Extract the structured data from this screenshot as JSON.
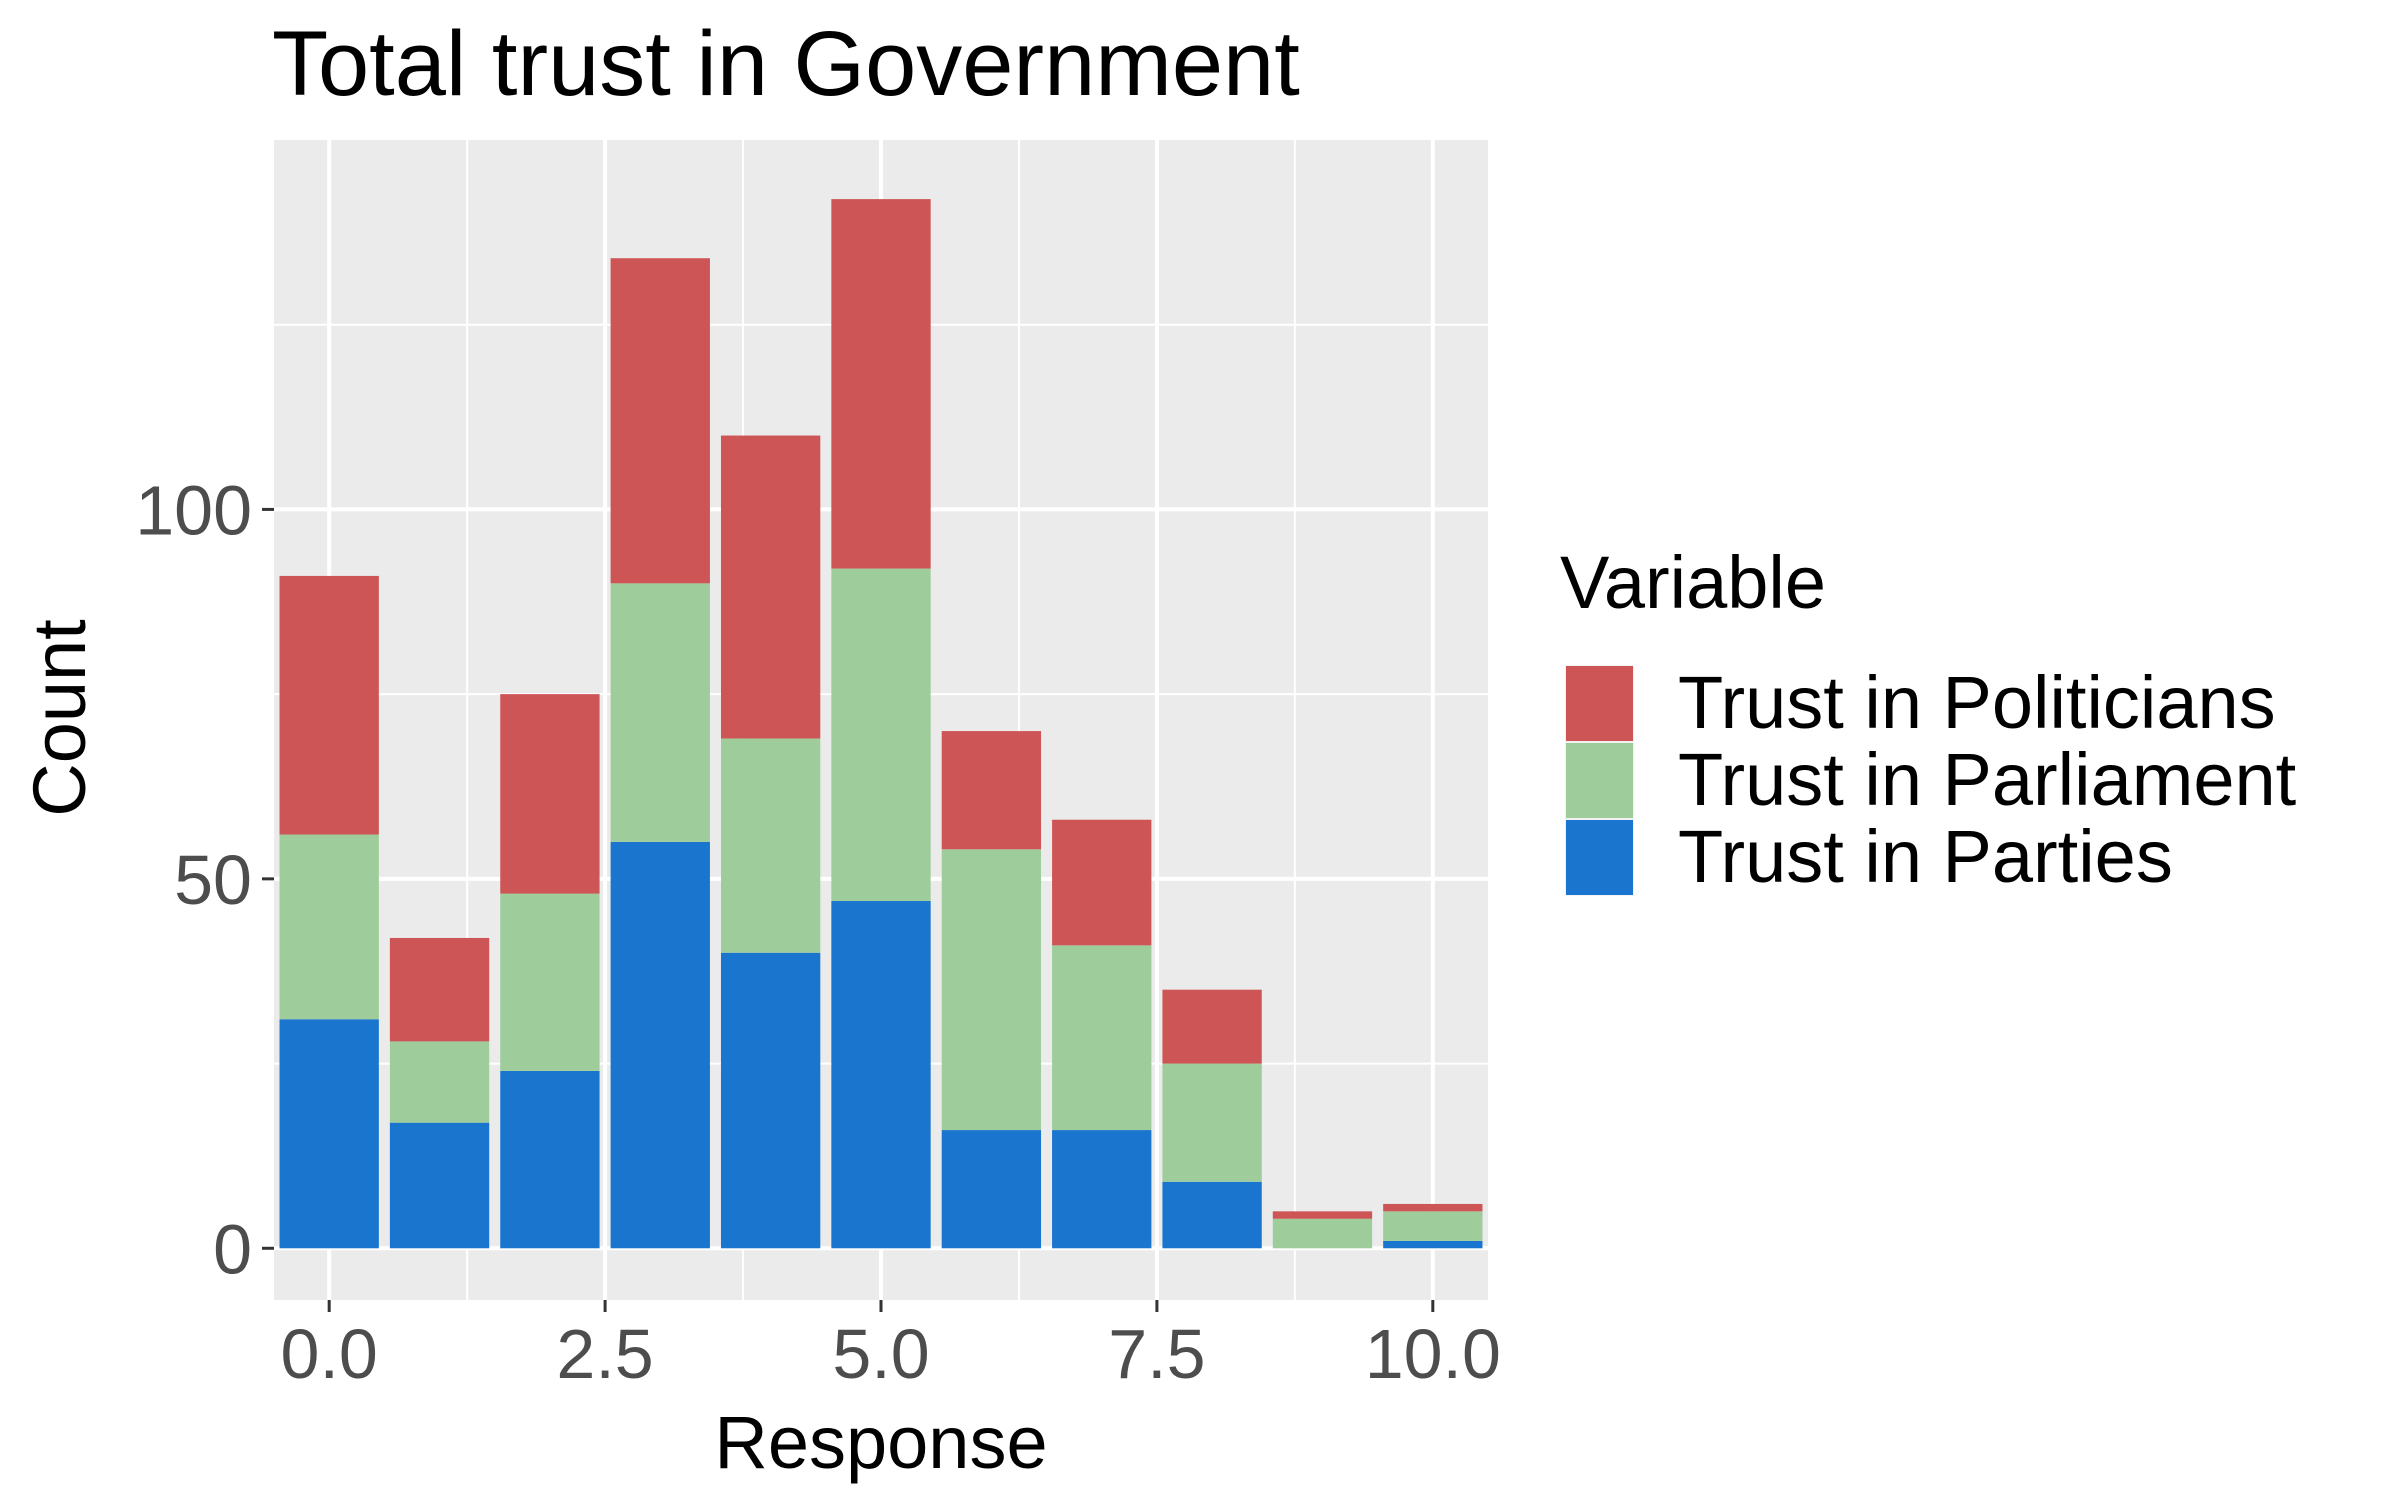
{
  "chart_data": {
    "type": "bar",
    "stacked": true,
    "title": "Total trust in Government",
    "xlabel": "Response",
    "ylabel": "Count",
    "x": [
      0,
      1,
      2,
      3,
      4,
      5,
      6,
      7,
      8,
      9,
      10
    ],
    "xlim": [
      -0.5,
      10.5
    ],
    "ylim": [
      -7,
      150
    ],
    "xticks": [
      0,
      2.5,
      5,
      7.5,
      10
    ],
    "xtick_labels": [
      "0.0",
      "2.5",
      "5.0",
      "7.5",
      "10.0"
    ],
    "yticks": [
      0,
      50,
      100
    ],
    "ytick_labels": [
      "0",
      "50",
      "100"
    ],
    "grid": true,
    "legend": {
      "title": "Variable",
      "position": "right",
      "entries": [
        "Trust in Politicians",
        "Trust in Parliament",
        "Trust in Parties"
      ]
    },
    "series": [
      {
        "name": "Trust in Parties",
        "color": "#1a75cf",
        "values": [
          31,
          17,
          24,
          55,
          40,
          47,
          16,
          16,
          9,
          0,
          1
        ]
      },
      {
        "name": "Trust in Parliament",
        "color": "#9ecd9b",
        "values": [
          25,
          11,
          24,
          35,
          29,
          45,
          38,
          25,
          16,
          4,
          4
        ]
      },
      {
        "name": "Trust in Politicians",
        "color": "#cd5555",
        "values": [
          35,
          14,
          27,
          44,
          41,
          50,
          16,
          17,
          10,
          1,
          1
        ]
      }
    ]
  }
}
